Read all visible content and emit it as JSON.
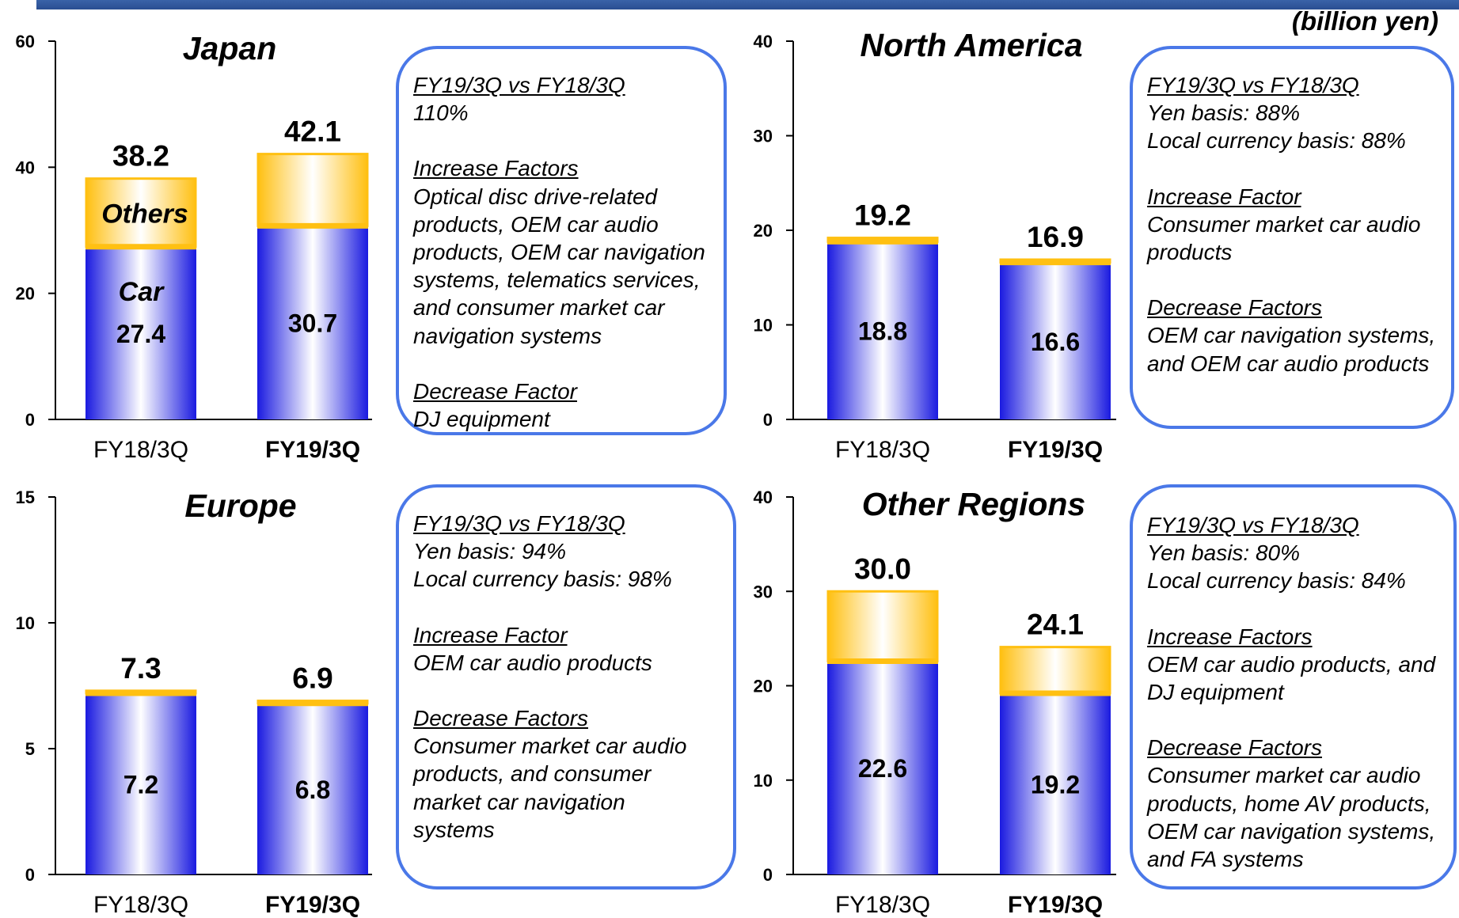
{
  "unit_label": "(billion yen)",
  "colors": {
    "car_bar": "#1a1ae0",
    "others_bar": "#ffc012",
    "box_border": "#4a78e8",
    "header_bar": "#2f5597"
  },
  "chart_data": [
    {
      "type": "bar",
      "title": "Japan",
      "categories": [
        "FY18/3Q",
        "FY19/3Q"
      ],
      "bold_category": 1,
      "series": [
        {
          "name": "Car",
          "values": [
            27.4,
            30.7
          ]
        },
        {
          "name": "Others",
          "values": [
            10.8,
            11.4
          ]
        }
      ],
      "totals": [
        "38.2",
        "42.1"
      ],
      "segment_labels": [
        "27.4",
        "30.7"
      ],
      "inline_labels": {
        "car": "Car",
        "others": "Others"
      },
      "ylim": [
        0,
        60
      ],
      "yticks": [
        0,
        20,
        40,
        60
      ],
      "xlabel": "",
      "ylabel": ""
    },
    {
      "type": "bar",
      "title": "North America",
      "categories": [
        "FY18/3Q",
        "FY19/3Q"
      ],
      "bold_category": 1,
      "series": [
        {
          "name": "Car",
          "values": [
            18.8,
            16.6
          ]
        },
        {
          "name": "Others",
          "values": [
            0.4,
            0.3
          ]
        }
      ],
      "totals": [
        "19.2",
        "16.9"
      ],
      "segment_labels": [
        "18.8",
        "16.6"
      ],
      "ylim": [
        0,
        40
      ],
      "yticks": [
        0,
        10,
        20,
        30,
        40
      ],
      "xlabel": "",
      "ylabel": ""
    },
    {
      "type": "bar",
      "title": "Europe",
      "categories": [
        "FY18/3Q",
        "FY19/3Q"
      ],
      "bold_category": 1,
      "series": [
        {
          "name": "Car",
          "values": [
            7.2,
            6.8
          ]
        },
        {
          "name": "Others",
          "values": [
            0.1,
            0.1
          ]
        }
      ],
      "totals": [
        "7.3",
        "6.9"
      ],
      "segment_labels": [
        "7.2",
        "6.8"
      ],
      "ylim": [
        0,
        15
      ],
      "yticks": [
        0,
        5,
        10,
        15
      ],
      "xlabel": "",
      "ylabel": ""
    },
    {
      "type": "bar",
      "title": "Other Regions",
      "categories": [
        "FY18/3Q",
        "FY19/3Q"
      ],
      "bold_category": 1,
      "series": [
        {
          "name": "Car",
          "values": [
            22.6,
            19.2
          ]
        },
        {
          "name": "Others",
          "values": [
            7.4,
            4.9
          ]
        }
      ],
      "totals": [
        "30.0",
        "24.1"
      ],
      "segment_labels": [
        "22.6",
        "19.2"
      ],
      "ylim": [
        0,
        40
      ],
      "yticks": [
        0,
        10,
        20,
        30,
        40
      ],
      "xlabel": "",
      "ylabel": ""
    }
  ],
  "factor_boxes": [
    {
      "sections": [
        {
          "heading": "FY19/3Q vs FY18/3Q",
          "lines": [
            "110%"
          ]
        },
        {
          "heading": "Increase Factors",
          "lines": [
            "Optical disc drive-related",
            "products, OEM car audio",
            "products, OEM car navigation",
            "systems, telematics services,",
            "and consumer market car",
            "navigation systems"
          ]
        },
        {
          "heading": "Decrease Factor",
          "lines": [
            "DJ equipment"
          ]
        }
      ]
    },
    {
      "sections": [
        {
          "heading": "FY19/3Q vs FY18/3Q",
          "lines": [
            "Yen basis: 88%",
            "Local currency basis: 88%"
          ]
        },
        {
          "heading": "Increase Factor",
          "lines": [
            "Consumer market car audio",
            "products"
          ]
        },
        {
          "heading": "Decrease Factors",
          "lines": [
            "OEM car navigation systems,",
            "and OEM car audio products"
          ]
        }
      ]
    },
    {
      "sections": [
        {
          "heading": "FY19/3Q vs FY18/3Q",
          "lines": [
            "Yen basis: 94%",
            "Local currency basis: 98%"
          ]
        },
        {
          "heading": "Increase Factor",
          "lines": [
            "OEM car audio products"
          ]
        },
        {
          "heading": "Decrease Factors",
          "lines": [
            "Consumer market car audio",
            "products, and consumer",
            "market car navigation",
            "systems"
          ]
        }
      ]
    },
    {
      "sections": [
        {
          "heading": "FY19/3Q vs FY18/3Q",
          "lines": [
            "Yen basis: 80%",
            "Local currency basis: 84%"
          ]
        },
        {
          "heading": "Increase Factors",
          "lines": [
            "OEM car audio products, and",
            "DJ equipment"
          ]
        },
        {
          "heading": "Decrease Factors",
          "lines": [
            "Consumer market car audio",
            "products, home AV products,",
            "OEM car navigation systems,",
            "and FA systems"
          ]
        }
      ]
    }
  ]
}
